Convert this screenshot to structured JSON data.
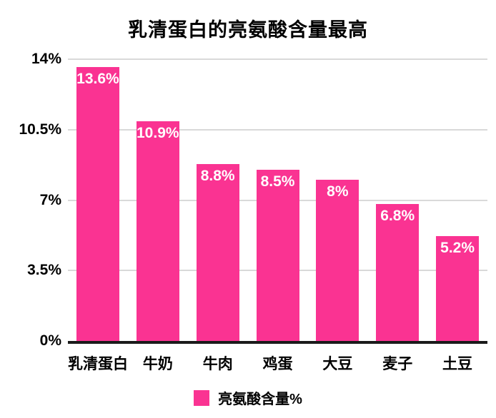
{
  "chart_data": {
    "type": "bar",
    "title": "乳清蛋白的亮氨酸含量最高",
    "categories": [
      "乳清蛋白",
      "牛奶",
      "牛肉",
      "鸡蛋",
      "大豆",
      "麦子",
      "土豆"
    ],
    "values": [
      13.6,
      10.9,
      8.8,
      8.5,
      8,
      6.8,
      5.2
    ],
    "value_labels": [
      "13.6%",
      "10.9%",
      "8.8%",
      "8.5%",
      "8%",
      "6.8%",
      "5.2%"
    ],
    "xlabel": "",
    "ylabel": "",
    "ylim": [
      0,
      14
    ],
    "y_tick_values": [
      0,
      3.5,
      7,
      10.5,
      14
    ],
    "y_tick_labels": [
      "0%",
      "3.5%",
      "7%",
      "10.5%",
      "14%"
    ],
    "grid": true,
    "legend_position": "bottom",
    "legend": {
      "label": "亮氨酸含量%",
      "swatch_color": "#fa3392"
    },
    "colors": {
      "bar": "#fa3392",
      "gridline": "#d9d9d9",
      "axis_line": "#1b1b1b",
      "value_text": "#ffffff",
      "text": "#000000",
      "background": "#ffffff"
    }
  }
}
